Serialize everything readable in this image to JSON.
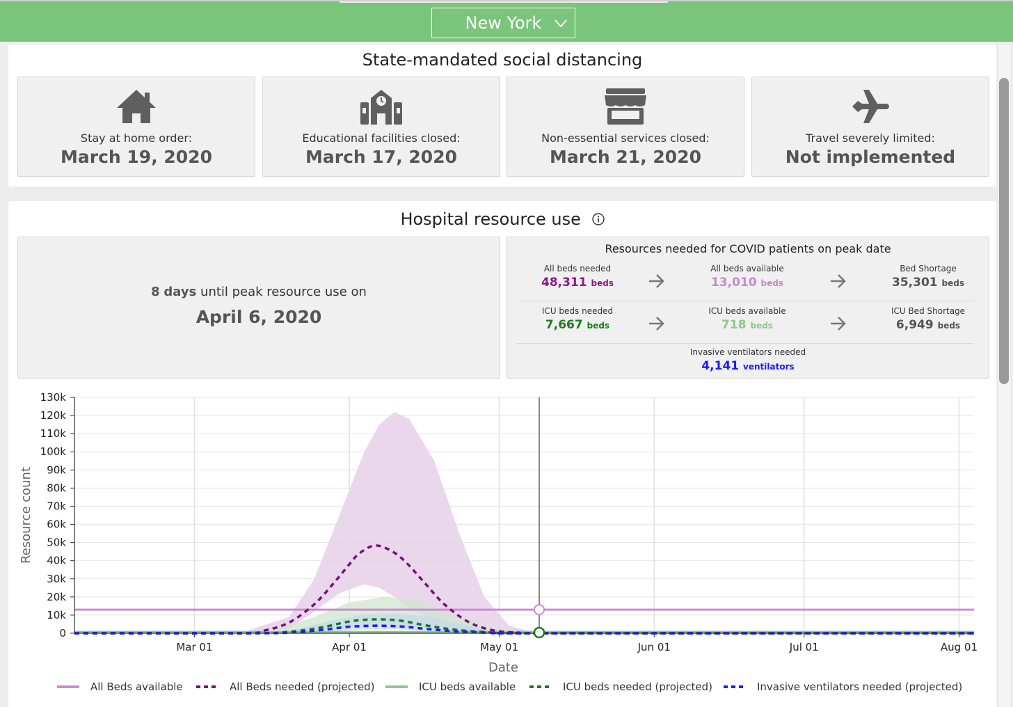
{
  "state_selector": {
    "value": "New York",
    "icon": "chevron-down-icon"
  },
  "distancing": {
    "title": "State-mandated social distancing",
    "items": [
      {
        "label": "Stay at home order:",
        "value": "March 19, 2020",
        "icon": "house-icon"
      },
      {
        "label": "Educational facilities closed:",
        "value": "March 17, 2020",
        "icon": "school-icon"
      },
      {
        "label": "Non-essential services closed:",
        "value": "March 21, 2020",
        "icon": "storefront-icon"
      },
      {
        "label": "Travel severely limited:",
        "value": "Not implemented",
        "icon": "airplane-icon"
      }
    ]
  },
  "hospital": {
    "title": "Hospital resource use",
    "peak": {
      "days": "8",
      "days_unit": "days",
      "text": "until peak resource use on",
      "date": "April 6, 2020"
    },
    "resources": {
      "title": "Resources needed for COVID patients on peak date",
      "all_beds_needed": {
        "label": "All beds needed",
        "value": "48,311",
        "unit": "beds"
      },
      "all_beds_available": {
        "label": "All beds available",
        "value": "13,010",
        "unit": "beds"
      },
      "bed_shortage": {
        "label": "Bed Shortage",
        "value": "35,301",
        "unit": "beds"
      },
      "icu_beds_needed": {
        "label": "ICU beds needed",
        "value": "7,667",
        "unit": "beds"
      },
      "icu_beds_available": {
        "label": "ICU beds available",
        "value": "718",
        "unit": "beds"
      },
      "icu_bed_shortage": {
        "label": "ICU Bed Shortage",
        "value": "6,949",
        "unit": "beds"
      },
      "ventilators": {
        "label": "Invasive ventilators needed",
        "value": "4,141",
        "unit": "ventilators"
      }
    }
  },
  "chart_data": {
    "type": "line",
    "xlabel": "Date",
    "ylabel": "Resource count",
    "ylim": [
      0,
      130000
    ],
    "yticks": [
      0,
      10000,
      20000,
      30000,
      40000,
      50000,
      60000,
      70000,
      80000,
      90000,
      100000,
      110000,
      120000,
      130000
    ],
    "ytick_labels": [
      "0",
      "10k",
      "20k",
      "30k",
      "40k",
      "50k",
      "60k",
      "70k",
      "80k",
      "90k",
      "100k",
      "110k",
      "120k",
      "130k"
    ],
    "xlim": [
      "2020-02-06",
      "2020-08-04"
    ],
    "xticks": [
      "2020-03-01",
      "2020-04-01",
      "2020-05-01",
      "2020-06-01",
      "2020-07-01",
      "2020-08-01"
    ],
    "xtick_labels": [
      "Mar 01",
      "Apr 01",
      "May 01",
      "Jun 01",
      "Jul 01",
      "Aug 01"
    ],
    "grid": true,
    "today_marker": "2020-05-09",
    "legend_position": "bottom",
    "colors": {
      "all_beds_available": "#c98ccf",
      "all_beds_needed": "#7a0f7a",
      "all_beds_band": "#e8d3ea",
      "icu_available": "#8dc98d",
      "icu_needed": "#1a7a1a",
      "ventilators": "#1a1aff",
      "icu_band": "#cfe6cf",
      "vent_band": "#c4d8ee"
    },
    "series": [
      {
        "name": "All Beds available",
        "style": "solid",
        "constant": 13010
      },
      {
        "name": "All Beds needed (projected)",
        "style": "dashed",
        "x": [
          "2020-02-06",
          "2020-03-10",
          "2020-03-15",
          "2020-03-20",
          "2020-03-25",
          "2020-03-29",
          "2020-04-01",
          "2020-04-03",
          "2020-04-06",
          "2020-04-09",
          "2020-04-12",
          "2020-04-16",
          "2020-04-20",
          "2020-04-25",
          "2020-04-30",
          "2020-05-05",
          "2020-05-09",
          "2020-08-04"
        ],
        "values": [
          0,
          0,
          1500,
          6000,
          16000,
          28000,
          38000,
          44000,
          48311,
          46000,
          40000,
          28000,
          16000,
          6000,
          1500,
          300,
          0,
          0
        ]
      },
      {
        "name": "ICU beds available",
        "style": "solid",
        "constant": 718
      },
      {
        "name": "ICU beds needed (projected)",
        "style": "dashed",
        "x": [
          "2020-02-06",
          "2020-03-12",
          "2020-03-20",
          "2020-03-27",
          "2020-04-01",
          "2020-04-06",
          "2020-04-11",
          "2020-04-16",
          "2020-04-22",
          "2020-04-30",
          "2020-05-09",
          "2020-08-04"
        ],
        "values": [
          0,
          0,
          800,
          3500,
          6500,
          7667,
          7000,
          4500,
          2000,
          400,
          0,
          0
        ]
      },
      {
        "name": "Invasive ventilators needed (projected)",
        "style": "dashed",
        "x": [
          "2020-02-06",
          "2020-03-12",
          "2020-03-20",
          "2020-03-27",
          "2020-04-01",
          "2020-04-06",
          "2020-04-11",
          "2020-04-16",
          "2020-04-22",
          "2020-04-30",
          "2020-05-09",
          "2020-08-04"
        ],
        "values": [
          0,
          0,
          400,
          2000,
          3600,
          4141,
          3800,
          2500,
          1100,
          200,
          0,
          0
        ]
      }
    ],
    "bands": [
      {
        "of": "All Beds needed (projected)",
        "x": [
          "2020-03-10",
          "2020-03-20",
          "2020-03-25",
          "2020-03-30",
          "2020-04-04",
          "2020-04-07",
          "2020-04-10",
          "2020-04-13",
          "2020-04-18",
          "2020-04-23",
          "2020-04-28",
          "2020-05-03",
          "2020-05-09"
        ],
        "upper": [
          0,
          9000,
          30000,
          65000,
          100000,
          115000,
          122000,
          118000,
          95000,
          55000,
          20000,
          4000,
          0
        ],
        "lower": [
          0,
          2500,
          12000,
          22000,
          27000,
          25000,
          20000,
          14000,
          6000,
          1500,
          300,
          0,
          0
        ]
      },
      {
        "of": "ICU beds needed (projected)",
        "x": [
          "2020-03-15",
          "2020-03-25",
          "2020-04-01",
          "2020-04-08",
          "2020-04-15",
          "2020-04-22",
          "2020-04-30",
          "2020-05-06"
        ],
        "upper": [
          0,
          9000,
          17000,
          20000,
          18000,
          10000,
          3000,
          0
        ],
        "lower": [
          0,
          1500,
          3500,
          4000,
          3000,
          1200,
          200,
          0
        ]
      },
      {
        "of": "Invasive ventilators needed (projected)",
        "x": [
          "2020-03-18",
          "2020-03-27",
          "2020-04-03",
          "2020-04-10",
          "2020-04-17",
          "2020-04-24",
          "2020-05-02"
        ],
        "upper": [
          0,
          6000,
          10000,
          11000,
          9000,
          4500,
          0
        ],
        "lower": [
          0,
          800,
          2000,
          2200,
          1500,
          500,
          0
        ]
      }
    ]
  }
}
